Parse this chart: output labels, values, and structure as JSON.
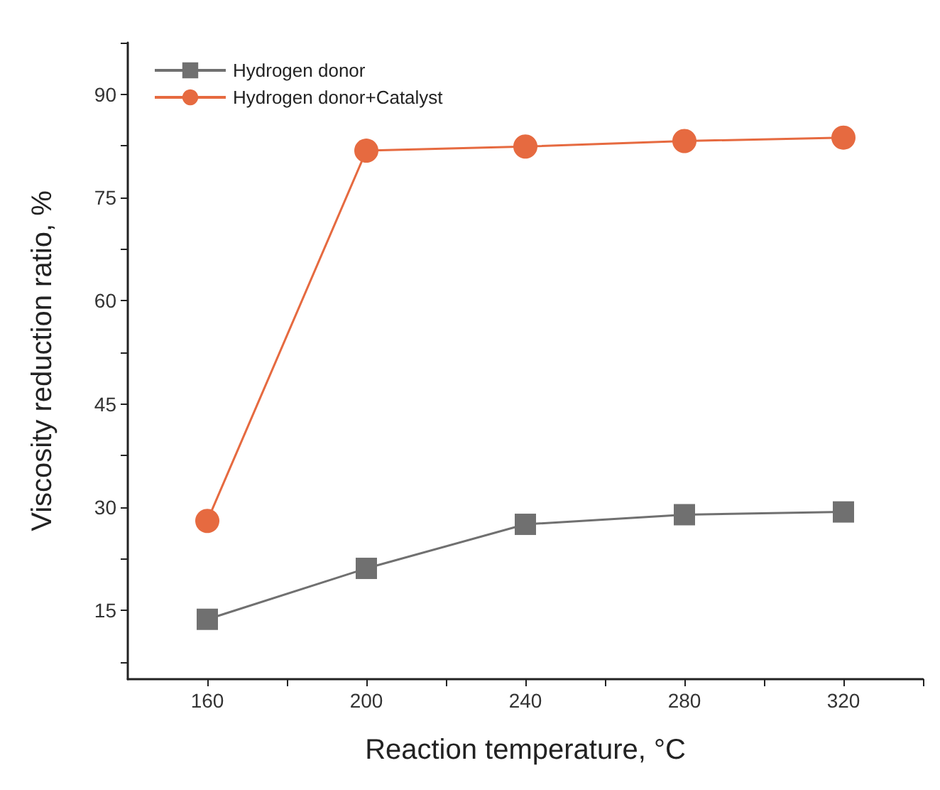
{
  "chart_data": {
    "type": "line",
    "xlabel": "Reaction temperature, °C",
    "ylabel": "Viscosity reduction ratio, %",
    "x": [
      160,
      200,
      240,
      280,
      320
    ],
    "series": [
      {
        "name": "Hydrogen donor",
        "color": "#707070",
        "marker": "square",
        "values": [
          13.7,
          21.1,
          27.5,
          28.9,
          29.3
        ]
      },
      {
        "name": "Hydrogen donor+Catalyst",
        "color": "#e66a40",
        "marker": "circle",
        "values": [
          28.0,
          81.8,
          82.4,
          83.2,
          83.7
        ]
      }
    ],
    "xlim": [
      140,
      340
    ],
    "xticks": [
      160,
      {
        "value": 180,
        "label": null
      },
      200,
      {
        "value": 220,
        "label": null
      },
      240,
      {
        "value": 260,
        "label": null
      },
      280,
      {
        "value": 300,
        "label": null
      },
      320,
      {
        "value": 340,
        "label": null
      }
    ],
    "ylim": [
      5,
      97.5
    ],
    "yticks": [
      {
        "value": 7.5,
        "label": null
      },
      15,
      {
        "value": 22.5,
        "label": null
      },
      30,
      {
        "value": 37.5,
        "label": null
      },
      45,
      {
        "value": 52.5,
        "label": null
      },
      60,
      {
        "value": 67.5,
        "label": null
      },
      75,
      {
        "value": 82.5,
        "label": null
      },
      90,
      {
        "value": 97.5,
        "label": null
      }
    ],
    "grid": false,
    "legend": "top left",
    "line_style": "solid"
  }
}
